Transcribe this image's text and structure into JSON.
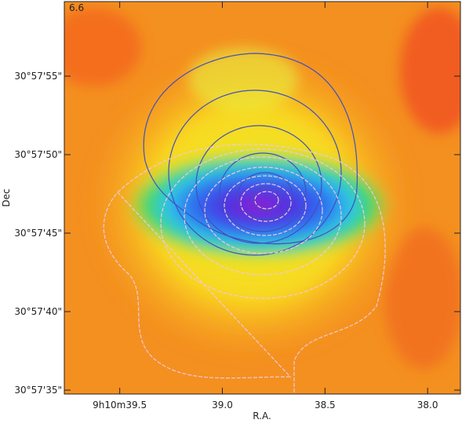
{
  "chart_data": {
    "type": "image",
    "annotation": "6.6",
    "xlabel": "R.A.",
    "ylabel": "Dec",
    "xlim": [
      39.77,
      37.84
    ],
    "ylim": [
      34.75,
      59.75
    ],
    "xticks": [
      {
        "value": 39.5,
        "label": "9h10m39.5"
      },
      {
        "value": 39.0,
        "label": "39.0"
      },
      {
        "value": 38.5,
        "label": "38.5"
      },
      {
        "value": 38.0,
        "label": "38.0"
      }
    ],
    "yticks": [
      {
        "value": 55,
        "label": "30°57'55\""
      },
      {
        "value": 50,
        "label": "30°57'50\""
      },
      {
        "value": 45,
        "label": "30°57'45\""
      },
      {
        "value": 40,
        "label": "30°57'40\""
      },
      {
        "value": 35,
        "label": "30°57'35\""
      }
    ]
  }
}
